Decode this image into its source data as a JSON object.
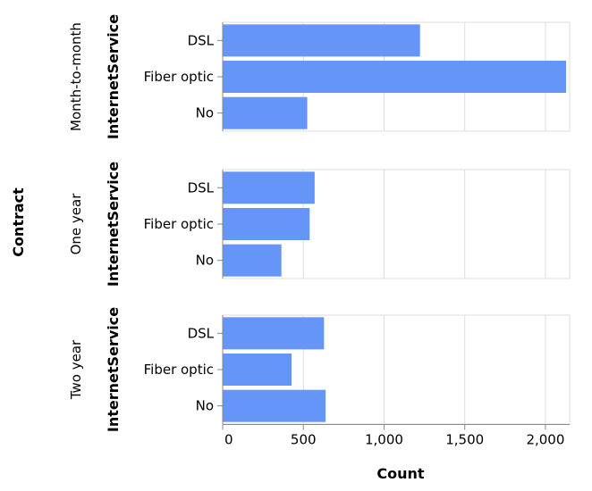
{
  "chart_data": {
    "type": "bar",
    "orientation": "horizontal",
    "row_title": "Contract",
    "ylabel": "InternetService",
    "xlabel": "Count",
    "xlim": [
      0,
      2150
    ],
    "x_ticks": [
      0,
      500,
      1000,
      1500,
      2000
    ],
    "x_tick_labels": [
      "0",
      "500",
      "1,000",
      "1,500",
      "2,000"
    ],
    "categories": [
      "DSL",
      "Fiber optic",
      "No"
    ],
    "bar_color": "#6495f7",
    "grid": true,
    "facets": [
      {
        "name": "Month-to-month",
        "values": [
          1223,
          2128,
          524
        ]
      },
      {
        "name": "One year",
        "values": [
          570,
          539,
          364
        ]
      },
      {
        "name": "Two year",
        "values": [
          628,
          427,
          638
        ]
      }
    ]
  }
}
